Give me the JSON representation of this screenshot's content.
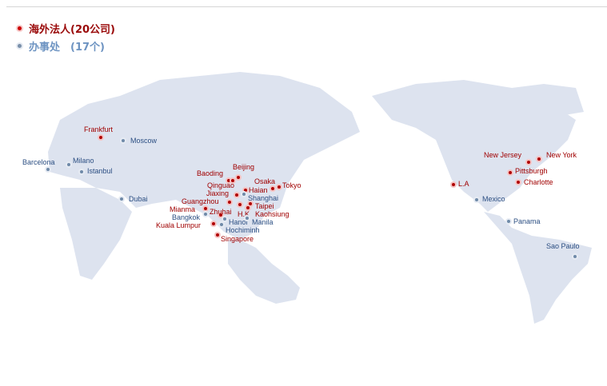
{
  "legend": {
    "subsidiaries": "海外法人(20公司)",
    "offices": "办事处　(17个)"
  },
  "colors": {
    "subsidiary": "#b00000",
    "office": "#6f8aa8",
    "land": "#dde3ef"
  },
  "cities": [
    {
      "name": "Frankfurt",
      "type": "subsidiary"
    },
    {
      "name": "Moscow",
      "type": "office"
    },
    {
      "name": "Barcelona",
      "type": "office"
    },
    {
      "name": "Milano",
      "type": "office"
    },
    {
      "name": "Istanbul",
      "type": "office"
    },
    {
      "name": "Dubai",
      "type": "office"
    },
    {
      "name": "Baoding",
      "type": "subsidiary"
    },
    {
      "name": "Beijing",
      "type": "subsidiary"
    },
    {
      "name": "Qinguao",
      "type": "subsidiary"
    },
    {
      "name": "Osaka",
      "type": "subsidiary"
    },
    {
      "name": "Tokyo",
      "type": "subsidiary"
    },
    {
      "name": "Haian",
      "type": "subsidiary"
    },
    {
      "name": "Jiaxing",
      "type": "subsidiary"
    },
    {
      "name": "Shanghai",
      "type": "office"
    },
    {
      "name": "Guangzhou",
      "type": "subsidiary"
    },
    {
      "name": "Taipei",
      "type": "subsidiary"
    },
    {
      "name": "H.K",
      "type": "subsidiary"
    },
    {
      "name": "Kaohsiung",
      "type": "subsidiary"
    },
    {
      "name": "Mianma",
      "type": "subsidiary"
    },
    {
      "name": "Zhuhai",
      "type": "subsidiary"
    },
    {
      "name": "Bangkok",
      "type": "office"
    },
    {
      "name": "Hanoi",
      "type": "office"
    },
    {
      "name": "Manila",
      "type": "office"
    },
    {
      "name": "Kuala Lumpur",
      "type": "subsidiary"
    },
    {
      "name": "Hochiminh",
      "type": "office"
    },
    {
      "name": "Singapore",
      "type": "subsidiary"
    },
    {
      "name": "L.A",
      "type": "subsidiary"
    },
    {
      "name": "Mexico",
      "type": "office"
    },
    {
      "name": "Panama",
      "type": "office"
    },
    {
      "name": "Sao Paulo",
      "type": "office"
    },
    {
      "name": "New Jersey",
      "type": "subsidiary"
    },
    {
      "name": "New York",
      "type": "subsidiary"
    },
    {
      "name": "Pittsburgh",
      "type": "subsidiary"
    },
    {
      "name": "Charlotte",
      "type": "subsidiary"
    }
  ]
}
